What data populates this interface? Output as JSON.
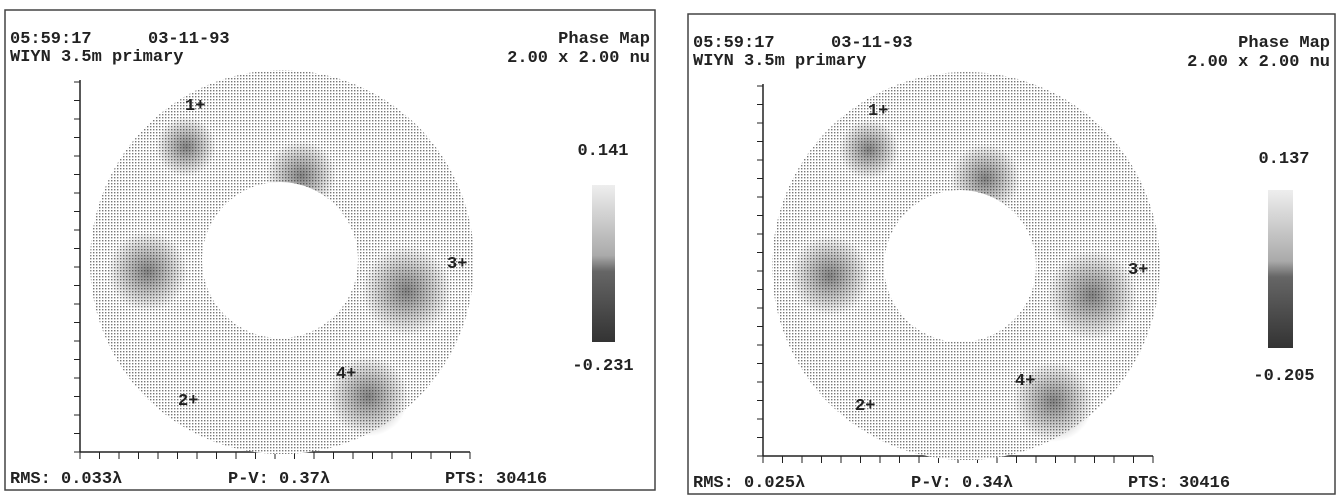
{
  "panels": [
    {
      "time": "05:59:17",
      "date": "03-11-93",
      "telescope": "WIYN 3.5m primary",
      "map_type": "Phase Map",
      "scale": "2.00 x 2.00 nu",
      "scale_max": "0.141",
      "scale_min": "-0.231",
      "markers": [
        "1+",
        "2+",
        "3+",
        "4+"
      ],
      "rms": "RMS: 0.033λ",
      "pv": "P-V: 0.37λ",
      "pts": "PTS: 30416"
    },
    {
      "time": "05:59:17",
      "date": "03-11-93",
      "telescope": "WIYN 3.5m primary",
      "map_type": "Phase Map",
      "scale": "2.00 x 2.00 nu",
      "scale_max": "0.137",
      "scale_min": "-0.205",
      "markers": [
        "1+",
        "2+",
        "3+",
        "4+"
      ],
      "rms": "RMS: 0.025λ",
      "pv": "P-V: 0.34λ",
      "pts": "PTS: 30416"
    }
  ]
}
